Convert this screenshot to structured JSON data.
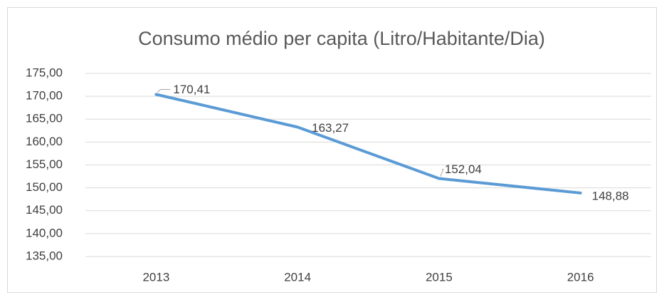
{
  "chart_data": {
    "type": "line",
    "title": "Consumo médio per capita (Litro/Habitante/Dia)",
    "categories": [
      "2013",
      "2014",
      "2015",
      "2016"
    ],
    "series": [
      {
        "name": "Consumo médio per capita",
        "color": "#5b9bd5",
        "values": [
          170.41,
          163.27,
          152.04,
          148.88
        ],
        "value_labels": [
          "170,41",
          "163,27",
          "152,04",
          "148,88"
        ]
      }
    ],
    "ylim": [
      135,
      175
    ],
    "yticks": [
      {
        "value": 135,
        "label": "135,00"
      },
      {
        "value": 140,
        "label": "140,00"
      },
      {
        "value": 145,
        "label": "145,00"
      },
      {
        "value": 150,
        "label": "150,00"
      },
      {
        "value": 155,
        "label": "155,00"
      },
      {
        "value": 160,
        "label": "160,00"
      },
      {
        "value": 165,
        "label": "165,00"
      },
      {
        "value": 170,
        "label": "170,00"
      },
      {
        "value": 175,
        "label": "175,00"
      }
    ],
    "grid": true
  }
}
